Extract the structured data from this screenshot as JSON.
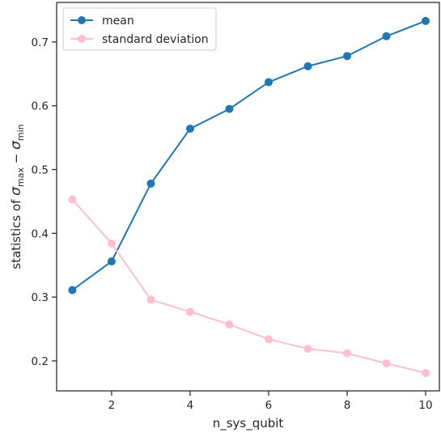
{
  "chart_data": {
    "type": "line",
    "xlabel": "n_sys_qubit",
    "ylabel": "statistics of σmax − σmin",
    "ylabel_parts": {
      "prefix": "statistics of ",
      "sym1": "σ",
      "sub1": "max",
      "minus": " − ",
      "sym2": "σ",
      "sub2": "min"
    },
    "x": [
      1,
      2,
      3,
      4,
      5,
      6,
      7,
      8,
      9,
      10
    ],
    "series": [
      {
        "name": "mean",
        "color": "#1f77b4",
        "values": [
          0.311,
          0.356,
          0.478,
          0.564,
          0.595,
          0.637,
          0.662,
          0.678,
          0.709,
          0.733
        ]
      },
      {
        "name": "standard deviation",
        "color": "#ffc0cb",
        "values": [
          0.453,
          0.384,
          0.296,
          0.277,
          0.257,
          0.234,
          0.219,
          0.212,
          0.196,
          0.181
        ]
      }
    ],
    "xlim": [
      0.6,
      10.35
    ],
    "ylim": [
      0.153,
      0.762
    ],
    "xticks": [
      2,
      4,
      6,
      8,
      10
    ],
    "xtick_labels": [
      "2",
      "4",
      "6",
      "8",
      "10"
    ],
    "yticks": [
      0.2,
      0.3,
      0.4,
      0.5,
      0.6,
      0.7
    ],
    "ytick_labels": [
      "0.2",
      "0.3",
      "0.4",
      "0.5",
      "0.6",
      "0.7"
    ],
    "grid": false,
    "legend_position": "top-left"
  }
}
